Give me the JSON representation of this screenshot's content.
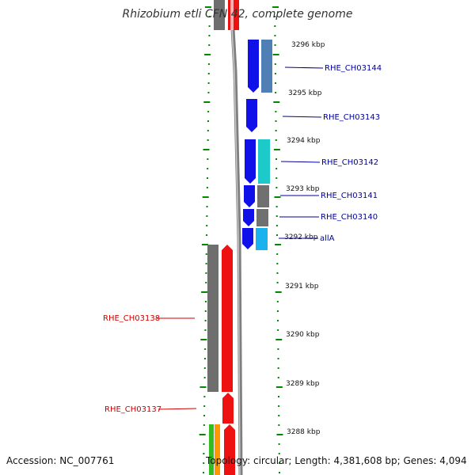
{
  "header": {
    "title": "Rhizobium etli CFN 42, complete genome"
  },
  "footer": {
    "accession": "Accession: NC_007761",
    "topology": "Topology: circular; Length: 4,381,608 bp; Genes: 4,094"
  },
  "scale": {
    "unit": "kbp",
    "ticks": [
      "3296 kbp",
      "3295 kbp",
      "3294 kbp",
      "3293 kbp",
      "3292 kbp",
      "3291 kbp",
      "3290 kbp",
      "3289 kbp",
      "3288 kbp"
    ]
  },
  "colors": {
    "backbone": "#808080",
    "forward_gene": "#1010e8",
    "reverse_gene": "#ee1111",
    "label_forward": "#000099",
    "label_reverse": "#cc0000",
    "dotted_track": "#008800"
  },
  "labels": {
    "forward": [
      "RHE_CH03144",
      "RHE_CH03143",
      "RHE_CH03142",
      "RHE_CH03141",
      "RHE_CH03140",
      "allA"
    ],
    "reverse": [
      "RHE_CH03138",
      "RHE_CH03137"
    ]
  }
}
